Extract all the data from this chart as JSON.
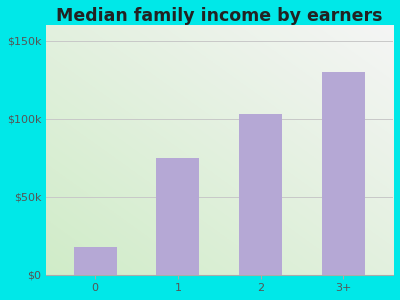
{
  "categories": [
    "0",
    "1",
    "2",
    "3+"
  ],
  "values": [
    18000,
    75000,
    103000,
    130000
  ],
  "bar_color": "#b5a8d5",
  "bar_edgecolor": "#b5a8d5",
  "title": "Median family income by earners",
  "title_color": "#222222",
  "subtitle_color": "#7a4a4a",
  "yticks": [
    0,
    50000,
    100000,
    150000
  ],
  "ytick_labels": [
    "$0",
    "$50k",
    "$100k",
    "$150k"
  ],
  "ylim": [
    0,
    160000
  ],
  "outer_bg": "#00e8e8",
  "plot_bg_topleft": "#e8f5e5",
  "plot_bg_topright": "#f5f5f5",
  "plot_bg_bottomleft": "#d8f0d0",
  "plot_bg_bottomright": "#f0f0f0",
  "grid_color": "#c8c8c8",
  "title_fontsize": 12.5,
  "subtitle_fontsize": 9,
  "tick_fontsize": 8,
  "tick_color": "#555555"
}
